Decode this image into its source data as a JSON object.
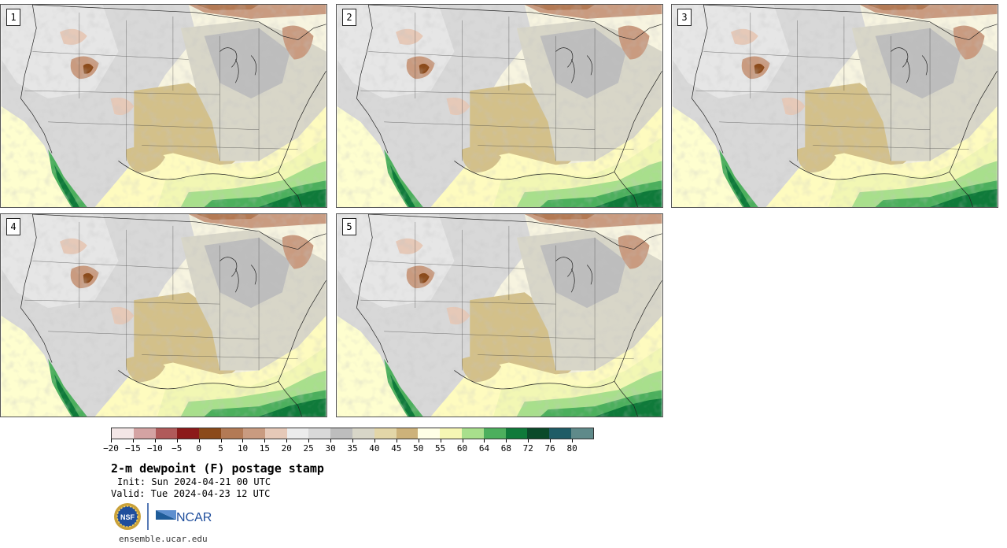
{
  "panels": [
    {
      "label": "1"
    },
    {
      "label": "2"
    },
    {
      "label": "3"
    },
    {
      "label": "4"
    },
    {
      "label": "5"
    }
  ],
  "colorbar": {
    "colors": [
      "#f3e6e6",
      "#d4a3a3",
      "#b05a5a",
      "#8c1a1a",
      "#8b4a1a",
      "#b37a55",
      "#c99b80",
      "#e6c9b8",
      "#ececec",
      "#d9d9d9",
      "#bdbdbd",
      "#d8d6c8",
      "#e3d6a8",
      "#cdb27a",
      "#ffffe6",
      "#f6f7b4",
      "#a8df8c",
      "#4caf5d",
      "#0f7a3a",
      "#0a4a2a",
      "#1f5c66",
      "#5f8a8a"
    ],
    "tick_labels": [
      "−20",
      "−15",
      "−10",
      "−5",
      "0",
      "5",
      "10",
      "15",
      "20",
      "25",
      "30",
      "35",
      "40",
      "45",
      "50",
      "55",
      "60",
      "64",
      "68",
      "72",
      "76",
      "80"
    ]
  },
  "title": "2-m dewpoint (F) postage stamp",
  "init": "Init: Sun 2024-04-21 00 UTC",
  "valid": "Valid: Tue 2024-04-23 12 UTC",
  "logos": {
    "nsf": "NSF",
    "ncar": "NCAR"
  },
  "url": "ensemble.ucar.edu"
}
